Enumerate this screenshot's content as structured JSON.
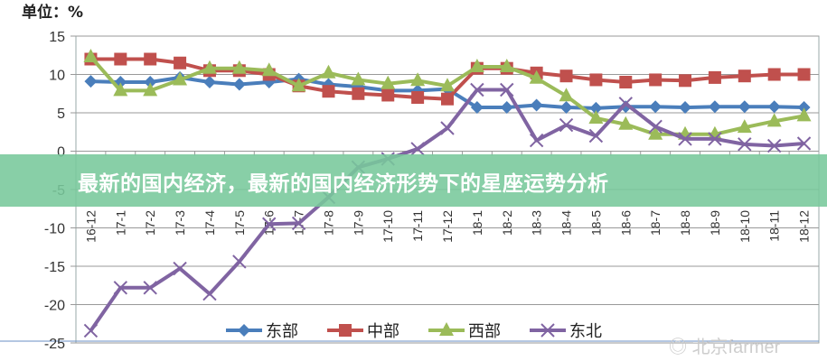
{
  "chart_data": {
    "type": "line",
    "title": "",
    "unit_label": "单位：%",
    "xlabel": "",
    "ylabel": "",
    "ylim": [
      -25,
      15
    ],
    "yticks": [
      15,
      10,
      5,
      0,
      -5,
      -10,
      -15,
      -20,
      -25
    ],
    "grid": true,
    "legend_position": "bottom",
    "categories": [
      "16-12",
      "17-1",
      "17-2",
      "17-3",
      "17-4",
      "17-5",
      "17-6",
      "17-7",
      "17-8",
      "17-9",
      "17-10",
      "17-11",
      "17-12",
      "18-1",
      "18-2",
      "18-3",
      "18-4",
      "18-5",
      "18-6",
      "18-7",
      "18-8",
      "18-9",
      "18-10",
      "18-11",
      "18-12"
    ],
    "series": [
      {
        "name": "东部",
        "color": "#4a7ebb",
        "marker": "diamond",
        "values": [
          9.1,
          9.0,
          9.0,
          9.6,
          9.0,
          8.7,
          9.0,
          9.4,
          8.7,
          8.4,
          7.9,
          7.9,
          8.1,
          5.7,
          5.7,
          6.0,
          5.7,
          5.6,
          5.8,
          5.8,
          5.7,
          5.8,
          5.8,
          5.8,
          5.7
        ]
      },
      {
        "name": "中部",
        "color": "#c0504d",
        "marker": "square",
        "values": [
          12.0,
          12.0,
          12.0,
          11.5,
          10.5,
          10.5,
          10.0,
          8.5,
          7.8,
          7.5,
          7.3,
          7.0,
          6.8,
          10.8,
          10.8,
          10.2,
          9.8,
          9.3,
          9.0,
          9.3,
          9.2,
          9.6,
          9.8,
          10.0,
          10.0
        ]
      },
      {
        "name": "西部",
        "color": "#9bbb59",
        "marker": "triangle",
        "values": [
          12.3,
          7.9,
          7.9,
          9.3,
          10.8,
          10.8,
          10.5,
          8.5,
          10.2,
          9.3,
          8.8,
          9.2,
          8.5,
          11.0,
          11.0,
          9.5,
          7.2,
          4.3,
          3.5,
          2.2,
          2.2,
          2.2,
          3.1,
          3.9,
          4.6
        ]
      },
      {
        "name": "东北",
        "color": "#8064a2",
        "marker": "x",
        "values": [
          -23.4,
          -17.8,
          -17.8,
          -15.3,
          -18.6,
          -14.4,
          -9.5,
          -9.4,
          -6.0,
          -2.1,
          -1.0,
          0.3,
          3.0,
          8.0,
          8.0,
          1.4,
          3.4,
          2.0,
          6.2,
          3.2,
          1.6,
          1.6,
          0.9,
          0.7,
          1.0
        ]
      }
    ]
  },
  "overlay": {
    "title": "最新的国内经济，最新的国内经济形势下的星座运势分析"
  },
  "watermark": "北京farmer"
}
